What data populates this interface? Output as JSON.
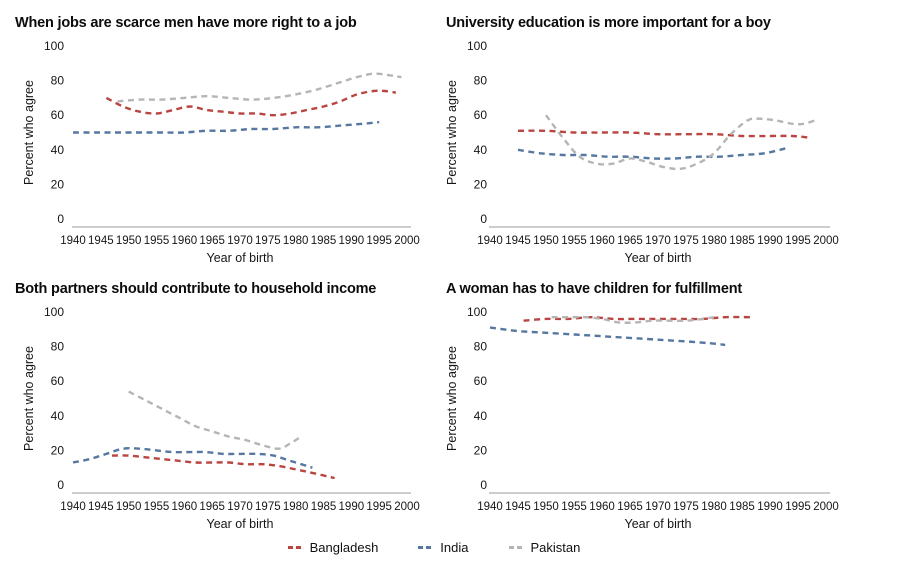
{
  "page": {
    "background": "#ffffff",
    "text_color": "#111111",
    "axis_color": "#9b9b9b"
  },
  "legend": {
    "items": [
      {
        "label": "Bangladesh",
        "color": "#b94540"
      },
      {
        "label": "India",
        "color": "#5677a0"
      },
      {
        "label": "Pakistan",
        "color": "#b5b5b5"
      }
    ]
  },
  "chart_data": [
    {
      "type": "line",
      "title": "When jobs are scarce men have more right to a job",
      "xlabel": "Year of birth",
      "ylabel": "Percent who agree",
      "xlim": [
        1940,
        2000
      ],
      "ylim": [
        0,
        100
      ],
      "x_ticks": [
        1940,
        1945,
        1950,
        1955,
        1960,
        1965,
        1970,
        1975,
        1980,
        1985,
        1990,
        1995,
        2000
      ],
      "y_ticks": [
        0,
        20,
        40,
        60,
        80,
        100
      ],
      "grid": false,
      "line_style": "dashed",
      "series": [
        {
          "name": "Bangladesh",
          "points": [
            [
              1946,
              70
            ],
            [
              1949,
              65
            ],
            [
              1952,
              62
            ],
            [
              1955,
              61
            ],
            [
              1958,
              63
            ],
            [
              1961,
              65
            ],
            [
              1964,
              63
            ],
            [
              1967,
              62
            ],
            [
              1970,
              61
            ],
            [
              1973,
              61
            ],
            [
              1976,
              60
            ],
            [
              1979,
              61
            ],
            [
              1982,
              63
            ],
            [
              1985,
              65
            ],
            [
              1988,
              68
            ],
            [
              1991,
              72
            ],
            [
              1994,
              74
            ],
            [
              1996,
              74
            ],
            [
              1998,
              73
            ]
          ]
        },
        {
          "name": "India",
          "points": [
            [
              1940,
              50
            ],
            [
              1944,
              50
            ],
            [
              1948,
              50
            ],
            [
              1952,
              50
            ],
            [
              1956,
              50
            ],
            [
              1960,
              50
            ],
            [
              1964,
              51
            ],
            [
              1968,
              51
            ],
            [
              1972,
              52
            ],
            [
              1976,
              52
            ],
            [
              1980,
              53
            ],
            [
              1984,
              53
            ],
            [
              1988,
              54
            ],
            [
              1992,
              55
            ],
            [
              1995,
              56
            ]
          ]
        },
        {
          "name": "Pakistan",
          "points": [
            [
              1948,
              68
            ],
            [
              1952,
              69
            ],
            [
              1956,
              69
            ],
            [
              1960,
              70
            ],
            [
              1964,
              71
            ],
            [
              1968,
              70
            ],
            [
              1972,
              69
            ],
            [
              1976,
              70
            ],
            [
              1980,
              72
            ],
            [
              1984,
              75
            ],
            [
              1988,
              79
            ],
            [
              1991,
              82
            ],
            [
              1994,
              84
            ],
            [
              1997,
              83
            ],
            [
              1999,
              82
            ]
          ]
        }
      ]
    },
    {
      "type": "line",
      "title": "University education is more important for a boy",
      "xlabel": "Year of birth",
      "ylabel": "Percent who agree",
      "xlim": [
        1940,
        2000
      ],
      "ylim": [
        0,
        100
      ],
      "x_ticks": [
        1940,
        1945,
        1950,
        1955,
        1960,
        1965,
        1970,
        1975,
        1980,
        1985,
        1990,
        1995,
        2000
      ],
      "y_ticks": [
        0,
        20,
        40,
        60,
        80,
        100
      ],
      "grid": false,
      "line_style": "dashed",
      "series": [
        {
          "name": "Bangladesh",
          "points": [
            [
              1945,
              51
            ],
            [
              1950,
              51
            ],
            [
              1955,
              50
            ],
            [
              1960,
              50
            ],
            [
              1965,
              50
            ],
            [
              1970,
              49
            ],
            [
              1975,
              49
            ],
            [
              1980,
              49
            ],
            [
              1985,
              48
            ],
            [
              1990,
              48
            ],
            [
              1994,
              48
            ],
            [
              1997,
              47
            ]
          ]
        },
        {
          "name": "India",
          "points": [
            [
              1945,
              40
            ],
            [
              1949,
              38
            ],
            [
              1953,
              37
            ],
            [
              1957,
              37
            ],
            [
              1961,
              36
            ],
            [
              1965,
              36
            ],
            [
              1969,
              35
            ],
            [
              1973,
              35
            ],
            [
              1977,
              36
            ],
            [
              1981,
              36
            ],
            [
              1985,
              37
            ],
            [
              1989,
              38
            ],
            [
              1993,
              41
            ]
          ]
        },
        {
          "name": "Pakistan",
          "points": [
            [
              1950,
              60
            ],
            [
              1953,
              47
            ],
            [
              1956,
              36
            ],
            [
              1959,
              32
            ],
            [
              1962,
              32
            ],
            [
              1965,
              35
            ],
            [
              1968,
              33
            ],
            [
              1971,
              30
            ],
            [
              1974,
              29
            ],
            [
              1977,
              32
            ],
            [
              1980,
              38
            ],
            [
              1983,
              49
            ],
            [
              1986,
              57
            ],
            [
              1988,
              58
            ],
            [
              1991,
              57
            ],
            [
              1994,
              55
            ],
            [
              1996,
              55
            ],
            [
              1998,
              57
            ]
          ]
        }
      ]
    },
    {
      "type": "line",
      "title": "Both partners should contribute to household income",
      "xlabel": "Year of birth",
      "ylabel": "Percent who agree",
      "xlim": [
        1940,
        2000
      ],
      "ylim": [
        0,
        100
      ],
      "x_ticks": [
        1940,
        1945,
        1950,
        1955,
        1960,
        1965,
        1970,
        1975,
        1980,
        1985,
        1990,
        1995,
        2000
      ],
      "y_ticks": [
        0,
        20,
        40,
        60,
        80,
        100
      ],
      "grid": false,
      "line_style": "dashed",
      "series": [
        {
          "name": "Bangladesh",
          "points": [
            [
              1947,
              17
            ],
            [
              1950,
              17
            ],
            [
              1953,
              16
            ],
            [
              1956,
              15
            ],
            [
              1959,
              14
            ],
            [
              1962,
              13
            ],
            [
              1965,
              13
            ],
            [
              1968,
              13
            ],
            [
              1971,
              12
            ],
            [
              1974,
              12
            ],
            [
              1977,
              11
            ],
            [
              1980,
              9
            ],
            [
              1983,
              7
            ],
            [
              1987,
              4
            ]
          ]
        },
        {
          "name": "India",
          "points": [
            [
              1940,
              13
            ],
            [
              1943,
              15
            ],
            [
              1946,
              18
            ],
            [
              1949,
              21
            ],
            [
              1952,
              21
            ],
            [
              1955,
              20
            ],
            [
              1958,
              19
            ],
            [
              1961,
              19
            ],
            [
              1964,
              19
            ],
            [
              1967,
              18
            ],
            [
              1970,
              18
            ],
            [
              1973,
              18
            ],
            [
              1976,
              17
            ],
            [
              1979,
              14
            ],
            [
              1983,
              10
            ]
          ]
        },
        {
          "name": "Pakistan",
          "points": [
            [
              1950,
              54
            ],
            [
              1953,
              49
            ],
            [
              1956,
              44
            ],
            [
              1959,
              39
            ],
            [
              1962,
              34
            ],
            [
              1965,
              31
            ],
            [
              1968,
              28
            ],
            [
              1971,
              26
            ],
            [
              1974,
              23
            ],
            [
              1977,
              21
            ],
            [
              1979,
              24
            ],
            [
              1981,
              28
            ]
          ]
        }
      ]
    },
    {
      "type": "line",
      "title": "A woman has to have children for fulfillment",
      "xlabel": "Year of birth",
      "ylabel": "Percent who agree",
      "xlim": [
        1940,
        2000
      ],
      "ylim": [
        0,
        100
      ],
      "x_ticks": [
        1940,
        1945,
        1950,
        1955,
        1960,
        1965,
        1970,
        1975,
        1980,
        1985,
        1990,
        1995,
        2000
      ],
      "y_ticks": [
        0,
        20,
        40,
        60,
        80,
        100
      ],
      "grid": false,
      "line_style": "dashed",
      "series": [
        {
          "name": "Bangladesh",
          "points": [
            [
              1946,
              95
            ],
            [
              1950,
              96
            ],
            [
              1954,
              96
            ],
            [
              1958,
              97
            ],
            [
              1962,
              96
            ],
            [
              1966,
              96
            ],
            [
              1970,
              96
            ],
            [
              1974,
              96
            ],
            [
              1978,
              96
            ],
            [
              1982,
              97
            ],
            [
              1987,
              97
            ]
          ]
        },
        {
          "name": "India",
          "points": [
            [
              1940,
              91
            ],
            [
              1945,
              89
            ],
            [
              1950,
              88
            ],
            [
              1955,
              87
            ],
            [
              1960,
              86
            ],
            [
              1965,
              85
            ],
            [
              1970,
              84
            ],
            [
              1975,
              83
            ],
            [
              1979,
              82
            ],
            [
              1982,
              81
            ]
          ]
        },
        {
          "name": "Pakistan",
          "points": [
            [
              1951,
              97
            ],
            [
              1954,
              97
            ],
            [
              1957,
              97
            ],
            [
              1960,
              96
            ],
            [
              1963,
              94
            ],
            [
              1966,
              94
            ],
            [
              1969,
              95
            ],
            [
              1972,
              95
            ],
            [
              1975,
              95
            ],
            [
              1978,
              96
            ],
            [
              1980,
              97
            ]
          ]
        }
      ]
    }
  ]
}
